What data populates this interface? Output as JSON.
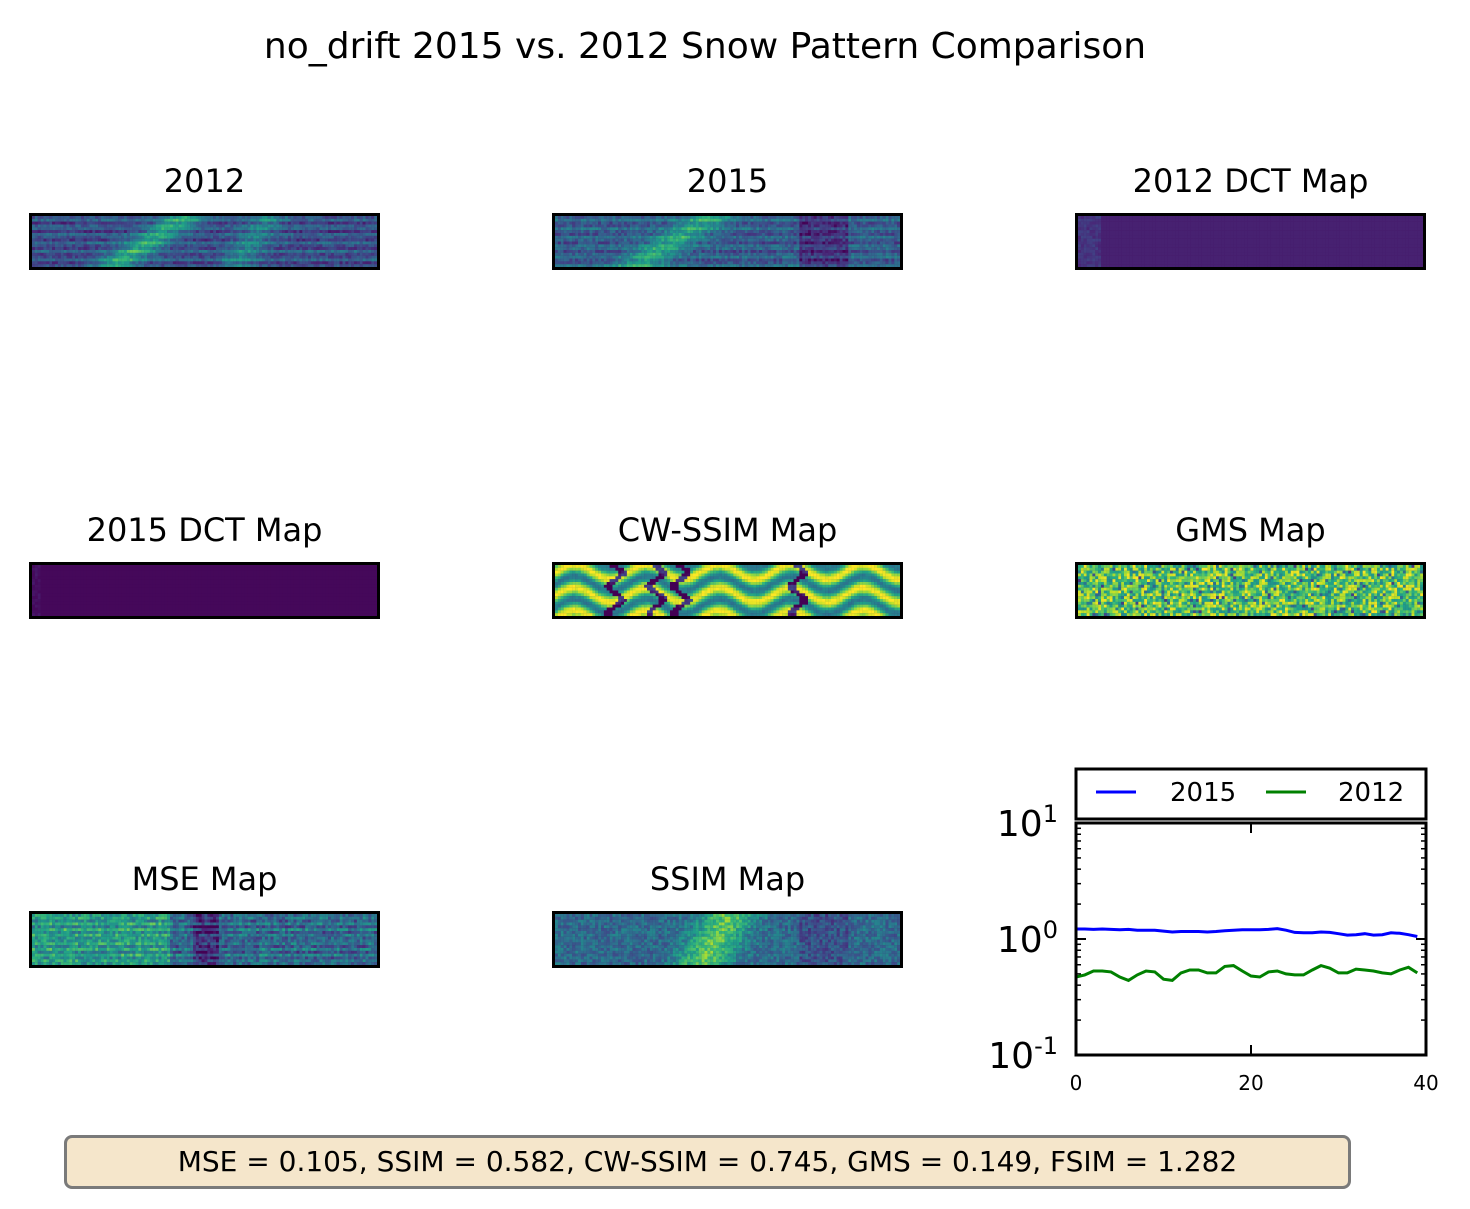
{
  "figure": {
    "title": "no_drift 2015 vs. 2012 Snow Pattern Comparison",
    "metrics_text": "MSE = 0.105, SSIM = 0.582, CW-SSIM = 0.745, GMS = 0.149, FSIM = 1.282"
  },
  "panels": [
    {
      "key": "p2012",
      "title": "2012",
      "pattern": "snow2012"
    },
    {
      "key": "p2015",
      "title": "2015",
      "pattern": "snow2015"
    },
    {
      "key": "dct2012",
      "title": "2012 DCT Map",
      "pattern": "dct"
    },
    {
      "key": "dct2015",
      "title": "2015 DCT Map",
      "pattern": "dct"
    },
    {
      "key": "cwssim",
      "title": "CW-SSIM Map",
      "pattern": "cwssim"
    },
    {
      "key": "gms",
      "title": "GMS Map",
      "pattern": "gms"
    },
    {
      "key": "mse",
      "title": "MSE Map",
      "pattern": "mse"
    },
    {
      "key": "ssim",
      "title": "SSIM Map",
      "pattern": "ssim"
    }
  ],
  "colormap": "viridis",
  "colors": {
    "series_2015": "#0000ff",
    "series_2012": "#008000",
    "metrics_box_fill": "#f5e6cb",
    "metrics_box_edge": "#7a7a7a"
  },
  "chart_data": {
    "type": "line",
    "xlim": [
      0,
      40
    ],
    "ylim": [
      0.1,
      10
    ],
    "yscale": "log",
    "xticks": [
      "0",
      "20",
      "40"
    ],
    "yticks": [
      {
        "value": 10,
        "base": "10",
        "exp": "1"
      },
      {
        "value": 1,
        "base": "10",
        "exp": "0"
      },
      {
        "value": 0.1,
        "base": "10",
        "exp": "-1"
      }
    ],
    "legend_position": "top (separate box above axes)",
    "series": [
      {
        "name": "2015",
        "color": "#0000ff",
        "x": [
          0,
          1,
          2,
          3,
          4,
          5,
          6,
          7,
          8,
          9,
          10,
          11,
          12,
          13,
          14,
          15,
          16,
          17,
          18,
          19,
          20,
          21,
          22,
          23,
          24,
          25,
          26,
          27,
          28,
          29,
          30,
          31,
          32,
          33,
          34,
          35,
          36,
          37,
          38,
          39
        ],
        "y": [
          1.22,
          1.22,
          1.21,
          1.22,
          1.21,
          1.2,
          1.21,
          1.19,
          1.19,
          1.19,
          1.17,
          1.15,
          1.16,
          1.16,
          1.16,
          1.15,
          1.16,
          1.18,
          1.19,
          1.2,
          1.2,
          1.2,
          1.21,
          1.23,
          1.19,
          1.14,
          1.13,
          1.13,
          1.15,
          1.14,
          1.11,
          1.08,
          1.09,
          1.11,
          1.08,
          1.09,
          1.13,
          1.12,
          1.09,
          1.05
        ]
      },
      {
        "name": "2012",
        "color": "#008000",
        "x": [
          0,
          1,
          2,
          3,
          4,
          5,
          6,
          7,
          8,
          9,
          10,
          11,
          12,
          13,
          14,
          15,
          16,
          17,
          18,
          19,
          20,
          21,
          22,
          23,
          24,
          25,
          26,
          27,
          28,
          29,
          30,
          31,
          32,
          33,
          34,
          35,
          36,
          37,
          38,
          39
        ],
        "y": [
          0.47,
          0.49,
          0.53,
          0.53,
          0.52,
          0.47,
          0.44,
          0.49,
          0.53,
          0.52,
          0.45,
          0.44,
          0.51,
          0.54,
          0.54,
          0.51,
          0.51,
          0.58,
          0.59,
          0.53,
          0.48,
          0.47,
          0.52,
          0.53,
          0.5,
          0.49,
          0.49,
          0.54,
          0.59,
          0.56,
          0.51,
          0.51,
          0.55,
          0.54,
          0.53,
          0.51,
          0.5,
          0.54,
          0.57,
          0.51
        ]
      }
    ]
  }
}
